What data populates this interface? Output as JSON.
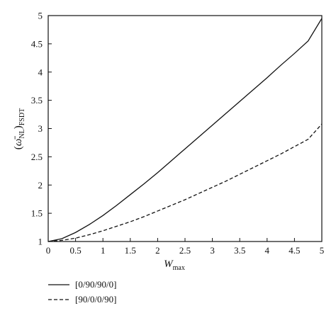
{
  "chart_data": {
    "type": "line",
    "xlabel": "W_max",
    "ylabel": "(ω̄_NL)_FSDT",
    "xlim": [
      0,
      5
    ],
    "ylim": [
      1,
      5
    ],
    "xticks": [
      "0",
      "0.5",
      "1",
      "1.5",
      "2",
      "2.5",
      "3",
      "3.5",
      "4",
      "4.5",
      "5"
    ],
    "yticks": [
      "1",
      "1.5",
      "2",
      "2.5",
      "3",
      "3.5",
      "4",
      "4.5",
      "5"
    ],
    "legend_position": "bottom-left (below plot)",
    "grid": false,
    "series": [
      {
        "name": "[0/90/90/0]",
        "style": "solid",
        "x": [
          0,
          0.25,
          0.5,
          0.75,
          1.0,
          1.25,
          1.5,
          1.75,
          2.0,
          2.25,
          2.5,
          2.75,
          3.0,
          3.25,
          3.5,
          3.75,
          4.0,
          4.25,
          4.5,
          4.75,
          5.0
        ],
        "y": [
          1.0,
          1.05,
          1.16,
          1.3,
          1.46,
          1.64,
          1.83,
          2.02,
          2.22,
          2.43,
          2.64,
          2.85,
          3.06,
          3.27,
          3.48,
          3.69,
          3.9,
          4.12,
          4.33,
          4.55,
          4.95
        ]
      },
      {
        "name": "[90/0/0/90]",
        "style": "dashed",
        "x": [
          0,
          0.25,
          0.5,
          0.75,
          1.0,
          1.25,
          1.5,
          1.75,
          2.0,
          2.25,
          2.5,
          2.75,
          3.0,
          3.25,
          3.5,
          3.75,
          4.0,
          4.25,
          4.5,
          4.75,
          5.0
        ],
        "y": [
          1.0,
          1.02,
          1.06,
          1.12,
          1.19,
          1.27,
          1.35,
          1.44,
          1.54,
          1.64,
          1.74,
          1.85,
          1.96,
          2.07,
          2.19,
          2.31,
          2.43,
          2.55,
          2.68,
          2.81,
          3.08
        ]
      }
    ]
  }
}
